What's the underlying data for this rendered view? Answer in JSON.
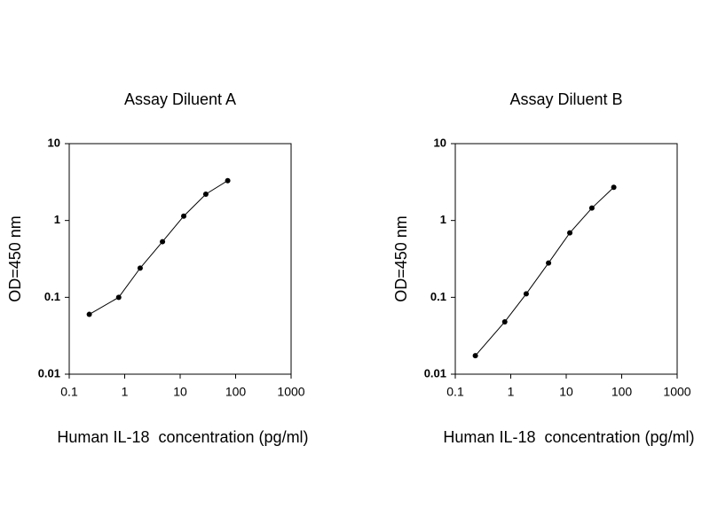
{
  "chart_data": [
    {
      "type": "line",
      "title": "Assay Diluent A",
      "x_label": "Human IL-18  concentration (pg/ml)",
      "y_label": "OD=450 nm",
      "x": [
        0.23,
        0.78,
        1.9,
        4.8,
        11.6,
        29,
        72
      ],
      "series": [
        {
          "color": "#000000",
          "values": [
            0.06,
            0.1,
            0.24,
            0.53,
            1.14,
            2.2,
            3.3
          ]
        }
      ],
      "xlim": [
        0.1,
        1000
      ],
      "ylim": [
        0.01,
        10
      ],
      "xticks": [
        0.1,
        1,
        10,
        100,
        1000
      ],
      "yticks": [
        0.01,
        0.1,
        1,
        10
      ],
      "x_log": true,
      "y_log": true,
      "grid": false
    },
    {
      "type": "line",
      "title": "Assay Diluent B",
      "x_label": "Human IL-18  concentration (pg/ml)",
      "y_label": "OD=450 nm",
      "x": [
        0.23,
        0.78,
        1.9,
        4.8,
        11.6,
        29,
        72
      ],
      "series": [
        {
          "color": "#000000",
          "values": [
            0.0174,
            0.048,
            0.111,
            0.28,
            0.69,
            1.45,
            2.7
          ]
        }
      ],
      "xlim": [
        0.1,
        1000
      ],
      "ylim": [
        0.01,
        10
      ],
      "xticks": [
        0.1,
        1,
        10,
        100,
        1000
      ],
      "yticks": [
        0.01,
        0.1,
        1,
        10
      ],
      "x_log": true,
      "y_log": true,
      "grid": false
    }
  ]
}
